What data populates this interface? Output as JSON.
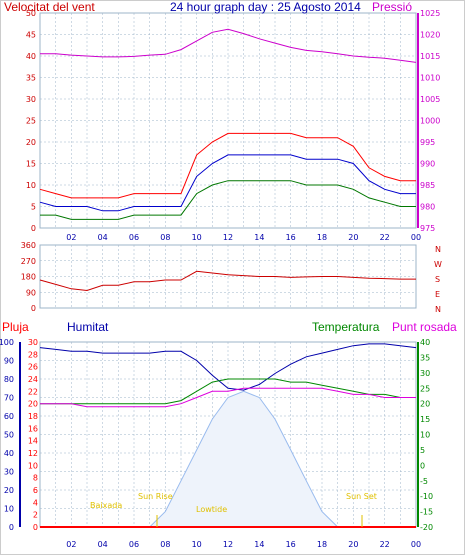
{
  "colors": {
    "wind_avg": "#0000cc",
    "wind_gust": "#ff0000",
    "wind_min": "#007700",
    "pressure": "#cc00cc",
    "direction": "#cc0000",
    "humidity": "#0000aa",
    "temperature": "#008800",
    "dewpoint": "#dd00dd",
    "rain": "#ff0000",
    "solar": "#99bbee",
    "grid": "#9db4c8",
    "annotation": "#e0c000"
  },
  "header": {
    "wind_label": "Velocitat del vent",
    "title": "24 hour graph day : 25 Agosto 2014",
    "pressure_label": "Pressió"
  },
  "lower_header": {
    "rain_label": "Pluja",
    "humidity_label": "Humitat",
    "temperature_label": "Temperatura",
    "dewpoint_label": "Punt rosada"
  },
  "direction_letters": [
    "N",
    "W",
    "S",
    "E",
    "N"
  ],
  "annotations": {
    "low_tide": "Baixada",
    "sun_rise": "Sun Rise",
    "low_tide_2": "Lowtide",
    "sun_set": "Sun Set"
  },
  "x_ticks": [
    "02",
    "04",
    "06",
    "08",
    "10",
    "12",
    "14",
    "16",
    "18",
    "20",
    "22",
    "00"
  ],
  "chart_data": [
    {
      "type": "line",
      "panel": "wind-pressure",
      "x": [
        0,
        1,
        2,
        3,
        4,
        5,
        6,
        7,
        8,
        9,
        10,
        11,
        12,
        13,
        14,
        15,
        16,
        17,
        18,
        19,
        20,
        21,
        22,
        23,
        24
      ],
      "series": [
        {
          "axis": "left",
          "values": [
            9,
            8,
            7,
            7,
            7,
            7,
            8,
            8,
            8,
            8,
            17,
            20,
            22,
            22,
            22,
            22,
            22,
            21,
            21,
            21,
            19,
            14,
            12,
            11,
            11
          ]
        },
        {
          "axis": "left",
          "values": [
            6,
            5,
            5,
            5,
            4,
            4,
            5,
            5,
            5,
            5,
            12,
            15,
            17,
            17,
            17,
            17,
            17,
            16,
            16,
            16,
            15,
            11,
            9,
            8,
            8
          ]
        },
        {
          "axis": "left",
          "values": [
            3,
            3,
            2,
            2,
            2,
            2,
            3,
            3,
            3,
            3,
            8,
            10,
            11,
            11,
            11,
            11,
            11,
            10,
            10,
            10,
            9,
            7,
            6,
            5,
            5
          ]
        },
        {
          "axis": "right",
          "values": [
            1015.5,
            1015.5,
            1015.2,
            1015.0,
            1014.8,
            1014.8,
            1014.9,
            1015.2,
            1015.4,
            1016.5,
            1018.5,
            1020.5,
            1021.2,
            1020.2,
            1019.0,
            1018.0,
            1017.0,
            1016.3,
            1016.0,
            1015.5,
            1015.0,
            1014.7,
            1014.5,
            1014.0,
            1013.5
          ]
        }
      ],
      "y_left": {
        "ticks": [
          0,
          5,
          10,
          15,
          20,
          25,
          30,
          35,
          40,
          45,
          50
        ],
        "ylim": [
          0,
          50
        ]
      },
      "y_right": {
        "ticks": [
          975,
          980,
          985,
          990,
          995,
          1000,
          1005,
          1010,
          1015,
          1020,
          1025
        ],
        "ylim": [
          975,
          1025
        ]
      }
    },
    {
      "type": "line",
      "panel": "direction",
      "x": [
        0,
        1,
        2,
        3,
        4,
        5,
        6,
        7,
        8,
        9,
        10,
        11,
        12,
        13,
        14,
        15,
        16,
        17,
        18,
        19,
        20,
        21,
        22,
        23,
        24
      ],
      "series": [
        {
          "values": [
            160,
            135,
            110,
            100,
            130,
            130,
            150,
            150,
            160,
            160,
            210,
            200,
            190,
            185,
            180,
            180,
            175,
            178,
            180,
            180,
            175,
            170,
            168,
            165,
            165
          ]
        }
      ],
      "y": {
        "ticks": [
          0,
          90,
          180,
          270,
          360
        ],
        "ylim": [
          0,
          360
        ]
      }
    },
    {
      "type": "line",
      "panel": "rain-humidity-temperature",
      "x": [
        0,
        1,
        2,
        3,
        4,
        5,
        6,
        7,
        8,
        9,
        10,
        11,
        12,
        13,
        14,
        15,
        16,
        17,
        18,
        19,
        20,
        21,
        22,
        23,
        24
      ],
      "series": [
        {
          "axis": "humidity",
          "values": [
            97,
            96,
            95,
            95,
            94,
            94,
            94,
            94,
            95,
            95,
            90,
            82,
            75,
            74,
            77,
            83,
            88,
            92,
            94,
            96,
            98,
            99,
            99,
            98,
            97
          ]
        },
        {
          "axis": "temperature",
          "values": [
            20,
            20,
            20,
            20,
            20,
            20,
            20,
            20,
            20,
            21,
            24,
            27,
            28,
            28,
            28,
            28,
            27,
            27,
            26,
            25,
            24,
            23,
            23,
            22,
            22
          ]
        },
        {
          "axis": "temperature",
          "values": [
            20,
            20,
            20,
            19,
            19,
            19,
            19,
            19,
            19,
            20,
            22,
            24,
            24,
            25,
            25,
            25,
            25,
            25,
            25,
            24,
            23,
            23,
            22,
            22,
            22
          ]
        },
        {
          "axis": "rain",
          "values": [
            0,
            0,
            0,
            0,
            0,
            0,
            0,
            0,
            0,
            0,
            0,
            0,
            0,
            0,
            0,
            0,
            0,
            0,
            0,
            0,
            0,
            0,
            0,
            0,
            0
          ]
        },
        {
          "axis": "temperature",
          "values": [
            -20,
            -20,
            -20,
            -20,
            -20,
            -20,
            -20,
            -20,
            -15,
            -5,
            5,
            15,
            22,
            24,
            22,
            15,
            5,
            -5,
            -15,
            -20,
            -20,
            -20,
            -20,
            -20,
            -20
          ]
        }
      ],
      "y_humidity": {
        "ticks": [
          0,
          10,
          20,
          30,
          40,
          50,
          60,
          70,
          80,
          90,
          100
        ],
        "ylim": [
          0,
          100
        ]
      },
      "y_rain": {
        "ticks": [
          0,
          2,
          4,
          6,
          8,
          10,
          12,
          14,
          16,
          18,
          20,
          22,
          24,
          26,
          28,
          30
        ],
        "ylim": [
          0,
          30
        ]
      },
      "y_temperature": {
        "ticks": [
          -20,
          -15,
          -10,
          -5,
          0,
          5,
          10,
          15,
          20,
          25,
          30,
          35,
          40
        ],
        "ylim": [
          -20,
          40
        ]
      }
    }
  ]
}
